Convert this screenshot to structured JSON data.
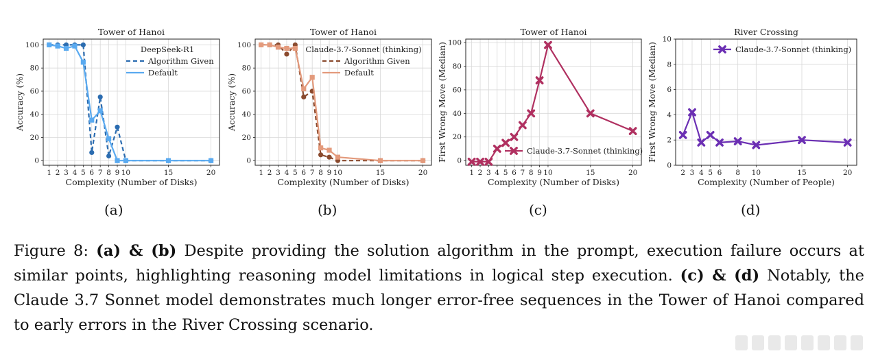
{
  "panel_letters": [
    "(a)",
    "(b)",
    "(c)",
    "(d)"
  ],
  "caption": {
    "t1": "Figure 8: ",
    "b1": "(a) & (b)",
    "t2": " Despite providing the solution algorithm in the prompt, execution failure occurs at similar points, highlighting reasoning model limitations in logical step execution. ",
    "b2": "(c) & (d)",
    "t3": " Notably, the Claude 3.7 Sonnet model demonstrates much longer error-free sequences in the Tower of Hanoi compared to early errors in the River Crossing scenario."
  },
  "chart_data": [
    {
      "type": "line",
      "title": "Tower of Hanoi",
      "xlabel": "Complexity (Number of Disks)",
      "ylabel": "Accuracy (%)",
      "xticks": [
        1,
        2,
        3,
        4,
        5,
        6,
        7,
        8,
        9,
        10,
        15,
        20
      ],
      "yticks": [
        0,
        20,
        40,
        60,
        80,
        100
      ],
      "xlim": [
        0.3,
        21
      ],
      "ylim": [
        -4,
        105
      ],
      "grid": true,
      "legend_position": "top-right",
      "legend_title": "DeepSeek-R1",
      "series": [
        {
          "name": "Algorithm Given",
          "style": "dashed",
          "marker": "circle",
          "color": "#2b6cb0",
          "x": [
            1,
            2,
            3,
            4,
            5,
            6,
            7,
            8,
            9,
            10,
            15,
            20
          ],
          "y": [
            100,
            100,
            100,
            100,
            100,
            7,
            55,
            4,
            29,
            0,
            0,
            0
          ]
        },
        {
          "name": "Default",
          "style": "solid",
          "marker": "square",
          "color": "#5aaaf0",
          "x": [
            1,
            2,
            3,
            4,
            5,
            6,
            7,
            8,
            9,
            10,
            15,
            20
          ],
          "y": [
            100,
            99,
            97,
            99,
            85,
            35,
            43,
            19,
            0,
            0,
            0,
            0
          ]
        }
      ]
    },
    {
      "type": "line",
      "title": "Tower of Hanoi",
      "xlabel": "Complexity (Number of Disks)",
      "ylabel": "Accuracy (%)",
      "xticks": [
        1,
        2,
        3,
        4,
        5,
        6,
        7,
        8,
        9,
        10,
        15,
        20
      ],
      "yticks": [
        0,
        20,
        40,
        60,
        80,
        100
      ],
      "xlim": [
        0.3,
        21
      ],
      "ylim": [
        -4,
        105
      ],
      "grid": true,
      "legend_position": "top-right",
      "legend_title": "Claude-3.7-Sonnet (thinking)",
      "series": [
        {
          "name": "Algorithm Given",
          "style": "dashed",
          "marker": "circle",
          "color": "#8a4a2e",
          "x": [
            1,
            2,
            3,
            4,
            5,
            6,
            7,
            8,
            9,
            10,
            15,
            20
          ],
          "y": [
            100,
            100,
            100,
            92,
            100,
            55,
            60,
            5,
            3,
            0,
            0,
            0
          ]
        },
        {
          "name": "Default",
          "style": "solid",
          "marker": "square",
          "color": "#e39a7c",
          "x": [
            1,
            2,
            3,
            4,
            5,
            6,
            7,
            8,
            9,
            10,
            15,
            20
          ],
          "y": [
            100,
            100,
            98,
            97,
            97,
            62,
            72,
            11,
            9,
            3,
            0,
            0
          ]
        }
      ]
    },
    {
      "type": "line",
      "title": "Tower of Hanoi",
      "xlabel": "Complexity (Number of Disks)",
      "ylabel": "First Wrong Move (Median)",
      "xticks": [
        1,
        2,
        3,
        4,
        5,
        6,
        7,
        8,
        9,
        10,
        15,
        20
      ],
      "yticks": [
        0,
        20,
        40,
        60,
        80,
        100
      ],
      "xlim": [
        0.3,
        21
      ],
      "ylim": [
        -4,
        103
      ],
      "grid": true,
      "legend_position": "lower-right",
      "series": [
        {
          "name": "Claude-3.7-Sonnet (thinking)",
          "style": "solid",
          "marker": "x",
          "color": "#b03060",
          "x": [
            1,
            2,
            3,
            4,
            5,
            6,
            7,
            8,
            9,
            10,
            15,
            20
          ],
          "y": [
            -1,
            -1,
            -1,
            10,
            15,
            20,
            30,
            40,
            68,
            98,
            40,
            25
          ]
        }
      ]
    },
    {
      "type": "line",
      "title": "River Crossing",
      "xlabel": "Complexity (Number of People)",
      "ylabel": "First Wrong Move (Median)",
      "xticks": [
        2,
        3,
        4,
        5,
        6,
        8,
        10,
        15,
        20
      ],
      "yticks": [
        0,
        2,
        4,
        6,
        8,
        10
      ],
      "xlim": [
        1.2,
        21
      ],
      "ylim": [
        0,
        10
      ],
      "grid": true,
      "legend_position": "top-right",
      "series": [
        {
          "name": "Claude-3.7-Sonnet (thinking)",
          "style": "solid",
          "marker": "x",
          "color": "#6b2fb3",
          "x": [
            2,
            3,
            4,
            5,
            6,
            8,
            10,
            15,
            20
          ],
          "y": [
            2.4,
            4.2,
            1.8,
            2.4,
            1.8,
            1.9,
            1.6,
            2.0,
            1.8
          ]
        }
      ]
    }
  ]
}
